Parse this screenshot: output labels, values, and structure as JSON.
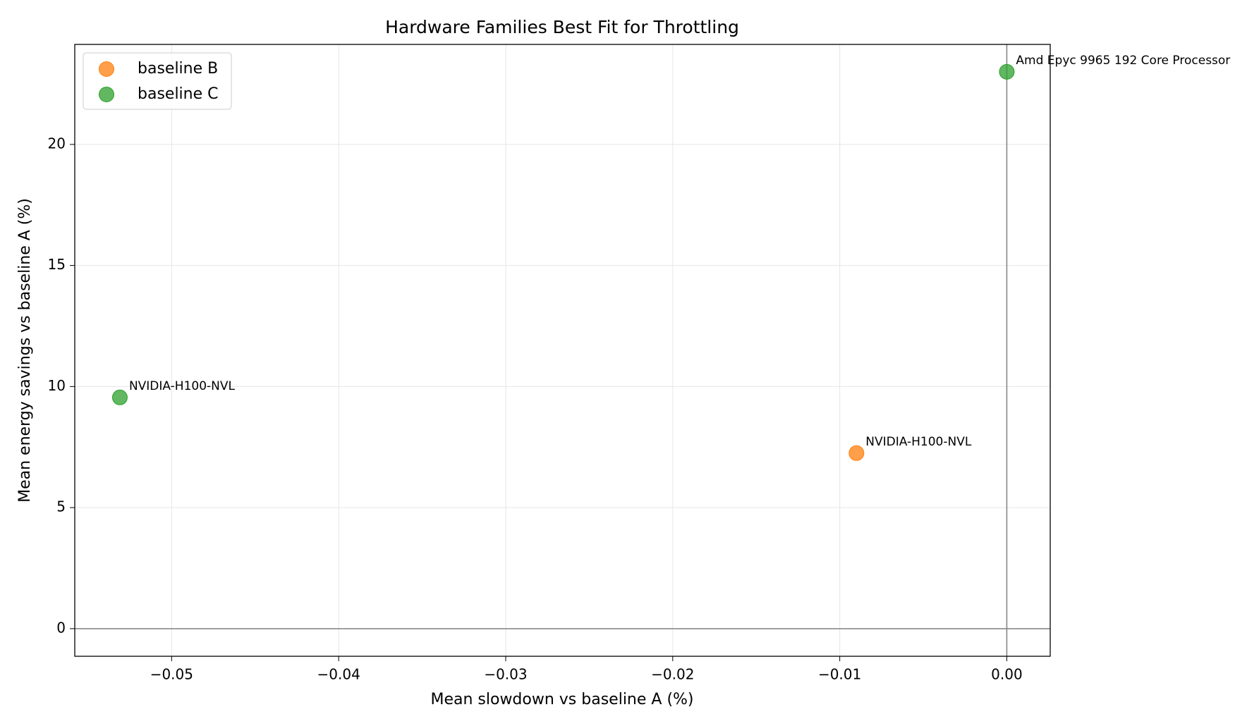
{
  "chart_data": {
    "type": "scatter",
    "title": "Hardware Families Best Fit for Throttling",
    "xlabel": "Mean slowdown vs baseline A (%)",
    "ylabel": "Mean energy savings vs baseline A (%)",
    "series": [
      {
        "name": "baseline B",
        "color": "#ff7f0e",
        "x": [
          -0.009
        ],
        "y": [
          7.25
        ],
        "labels": [
          "NVIDIA-H100-NVL"
        ]
      },
      {
        "name": "baseline C",
        "color": "#2ca02c",
        "x": [
          -0.0531,
          0.0
        ],
        "y": [
          9.55,
          23.0
        ],
        "labels": [
          "NVIDIA-H100-NVL",
          "Amd Epyc 9965 192 Core Processor"
        ]
      }
    ],
    "xlim": [
      -0.0558,
      0.0026
    ],
    "ylim": [
      -1.14,
      24.13
    ],
    "xticks": [
      {
        "value": -0.05,
        "label": "−0.05"
      },
      {
        "value": -0.04,
        "label": "−0.04"
      },
      {
        "value": -0.03,
        "label": "−0.03"
      },
      {
        "value": -0.02,
        "label": "−0.02"
      },
      {
        "value": -0.01,
        "label": "−0.01"
      },
      {
        "value": 0.0,
        "label": "0.00"
      }
    ],
    "yticks": [
      0,
      5,
      10,
      15,
      20
    ],
    "grid": true,
    "legend": "upper left"
  }
}
